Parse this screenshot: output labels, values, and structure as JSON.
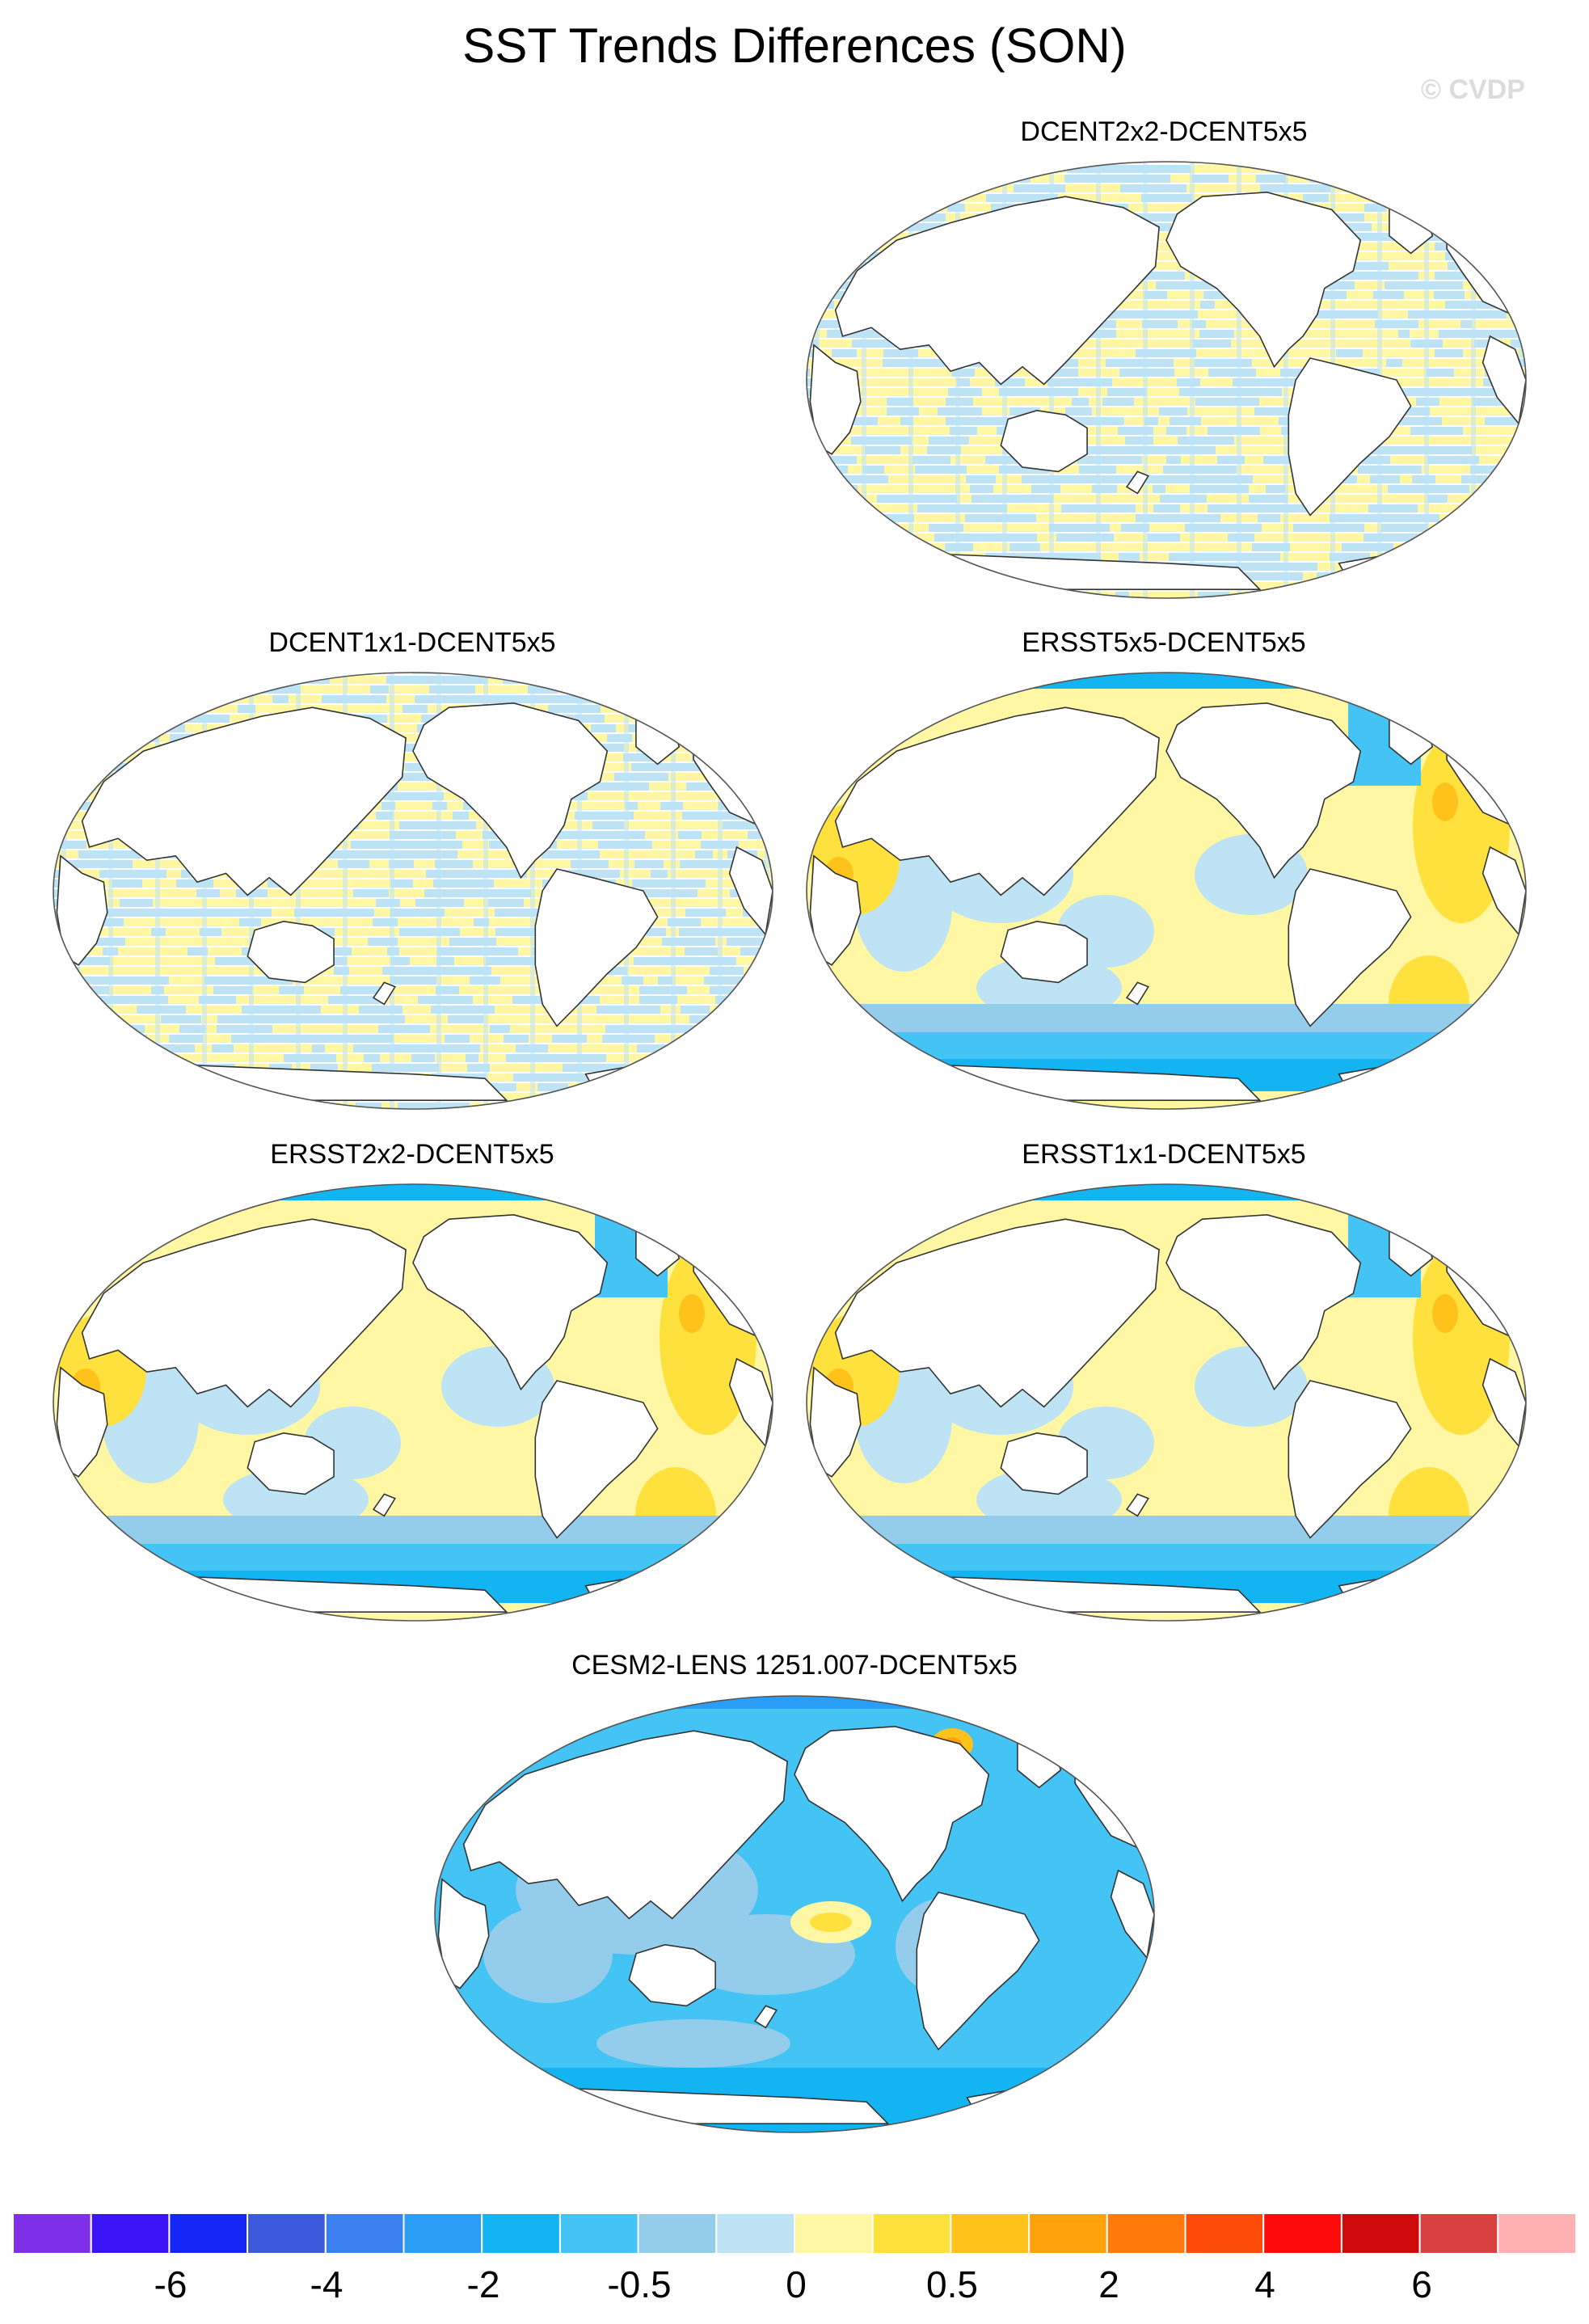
{
  "figure": {
    "title": "SST Trends Differences (SON)",
    "watermark": "© CVDP"
  },
  "panels": [
    {
      "id": "p1",
      "label": "DCENT2x2-DCENT5x5",
      "pattern": "stripes"
    },
    {
      "id": "p2",
      "label": "DCENT1x1-DCENT5x5",
      "pattern": "stripes"
    },
    {
      "id": "p3",
      "label": "ERSST5x5-DCENT5x5",
      "pattern": "smooth"
    },
    {
      "id": "p4",
      "label": "ERSST2x2-DCENT5x5",
      "pattern": "smooth"
    },
    {
      "id": "p5",
      "label": "ERSST1x1-DCENT5x5",
      "pattern": "smooth"
    },
    {
      "id": "p6",
      "label": "CESM2-LENS 1251.007-DCENT5x5",
      "pattern": "model"
    }
  ],
  "colorbar": {
    "colors": [
      "#7f2fe8",
      "#3a14f5",
      "#1426f5",
      "#3c5bdc",
      "#3a80ee",
      "#2a9ef6",
      "#13b4f2",
      "#44c3f5",
      "#94cdec",
      "#bde3f5",
      "#fff7a3",
      "#ffe13d",
      "#ffc21a",
      "#ffa20c",
      "#ff7a0a",
      "#ff4b0a",
      "#ff0a0a",
      "#d00a0a",
      "#d94040",
      "#ffb0b0"
    ],
    "labels": [
      "-6",
      "-4",
      "-2",
      "-0.5",
      "0",
      "0.5",
      "2",
      "4",
      "6"
    ]
  }
}
